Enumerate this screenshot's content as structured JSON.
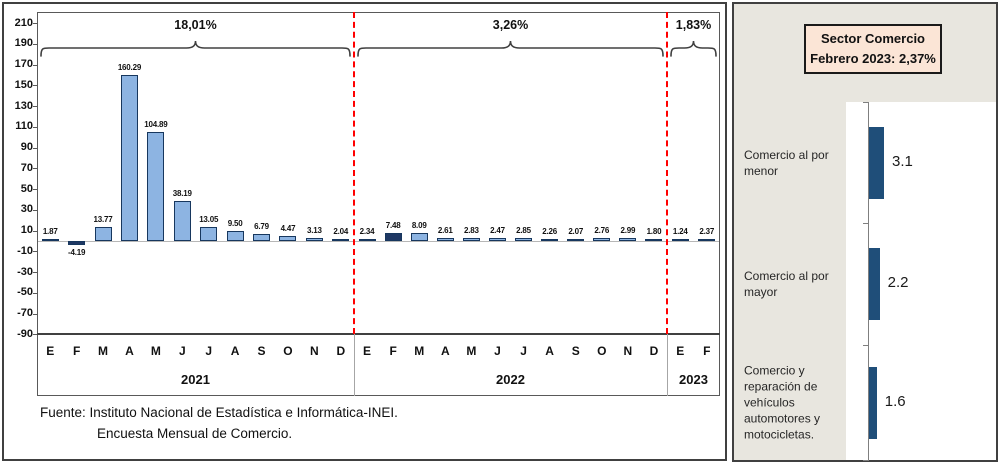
{
  "chart_data": [
    {
      "type": "bar",
      "title": "",
      "xlabel": "",
      "ylabel": "",
      "ylim": [
        -90,
        210
      ],
      "ytick_step": 20,
      "yticks": [
        210,
        190,
        170,
        150,
        130,
        110,
        90,
        70,
        50,
        30,
        10,
        -10,
        -30,
        -50,
        -70,
        -90
      ],
      "grid": false,
      "bar_color": "#8DB4E2",
      "highlight_color": "#1F3864",
      "highlight_month": "F",
      "divider_color": "#FF0000",
      "months_template": [
        "E",
        "F",
        "M",
        "A",
        "M",
        "J",
        "J",
        "A",
        "S",
        "O",
        "N",
        "D"
      ],
      "groups": [
        {
          "year": "2021",
          "annotation": "18,01%",
          "months": [
            "E",
            "F",
            "M",
            "A",
            "M",
            "J",
            "J",
            "A",
            "S",
            "O",
            "N",
            "D"
          ],
          "values": [
            1.87,
            -4.19,
            13.77,
            160.29,
            104.89,
            38.19,
            13.05,
            9.5,
            6.79,
            4.47,
            3.13,
            2.04
          ]
        },
        {
          "year": "2022",
          "annotation": "3,26%",
          "months": [
            "E",
            "F",
            "M",
            "A",
            "M",
            "J",
            "J",
            "A",
            "S",
            "O",
            "N",
            "D"
          ],
          "values": [
            2.34,
            7.48,
            8.09,
            2.61,
            2.83,
            2.47,
            2.85,
            2.26,
            2.07,
            2.76,
            2.99,
            1.8
          ]
        },
        {
          "year": "2023",
          "annotation": "1,83%",
          "months": [
            "E",
            "F"
          ],
          "values": [
            1.24,
            2.37
          ]
        }
      ],
      "source_line1": "Fuente: Instituto Nacional de Estadística e Informática-INEI.",
      "source_line2": "Encuesta Mensual de Comercio."
    },
    {
      "type": "bar",
      "orientation": "horizontal",
      "title_line1": "Sector Comercio",
      "title_line2": "Febrero 2023: 2,37%",
      "title_bg": "#FBE5D6",
      "panel_bg": "#E8E6DF",
      "bar_color": "#1F4E79",
      "categories": [
        "Comercio al por menor",
        "Comercio al por mayor",
        "Comercio y reparación de vehículos automotores y motocicletas."
      ],
      "values": [
        3.1,
        2.2,
        1.6
      ],
      "value_labels": [
        "3.1",
        "2.2",
        "1.6"
      ]
    }
  ]
}
